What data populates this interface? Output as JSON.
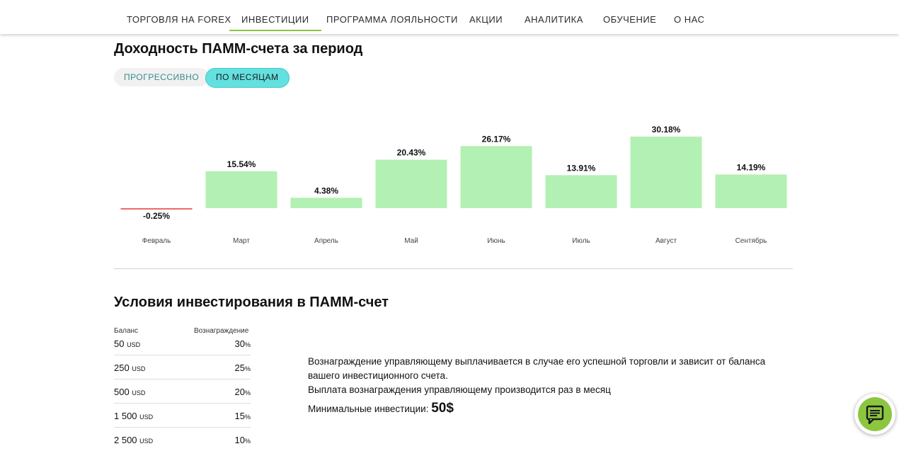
{
  "nav": {
    "items": [
      {
        "label": "ТОРГОВЛЯ НА FOREX"
      },
      {
        "label": "ИНВЕСТИЦИИ",
        "active": true
      },
      {
        "label": "ПРОГРАММА ЛОЯЛЬНОСТИ"
      },
      {
        "label": "АКЦИИ"
      },
      {
        "label": "АНАЛИТИКА"
      },
      {
        "label": "ОБУЧЕНИЕ"
      },
      {
        "label": "О НАС"
      }
    ],
    "accent_color": "#8cc63f"
  },
  "yield_section": {
    "title": "Доходность ПАММ-счета за период",
    "toggle_progressive": "ПРОГРЕССИВНО",
    "toggle_monthly": "ПО МЕСЯЦАМ",
    "selected": "ПО МЕСЯЦАМ"
  },
  "chart_data": {
    "type": "bar",
    "categories": [
      "Февраль",
      "Март",
      "Апрель",
      "Май",
      "Июнь",
      "Июль",
      "Август",
      "Сентябрь"
    ],
    "values": [
      -0.25,
      15.54,
      4.38,
      20.43,
      26.17,
      13.91,
      30.18,
      14.19
    ],
    "value_labels": [
      "-0.25%",
      "15.54%",
      "4.38%",
      "20.43%",
      "26.17%",
      "13.91%",
      "30.18%",
      "14.19%"
    ],
    "unit": "%",
    "colors": {
      "positive": "#b3f0b3",
      "negative": "#e53935"
    },
    "grid": false
  },
  "conditions_section": {
    "title": "Условия инвестирования в ПАММ-счет",
    "table": {
      "header_balance": "Баланс",
      "header_reward": "Вознаграждение",
      "rows": [
        {
          "amount": "50",
          "currency": "USD",
          "reward": "30",
          "unit": "%"
        },
        {
          "amount": "250",
          "currency": "USD",
          "reward": "25",
          "unit": "%"
        },
        {
          "amount": "500",
          "currency": "USD",
          "reward": "20",
          "unit": "%"
        },
        {
          "amount": "1 500",
          "currency": "USD",
          "reward": "15",
          "unit": "%"
        },
        {
          "amount": "2 500",
          "currency": "USD",
          "reward": "10",
          "unit": "%"
        }
      ]
    },
    "info_line1": "Вознаграждение управляющему выплачивается в случае его успешной торговли и зависит от баланса",
    "info_line2": "вашего инвестиционного счета.",
    "info_line3": "Выплата вознаграждения управляющему производится раз в месяц",
    "min_label": "Минимальные инвестиции:",
    "min_value": "50$"
  },
  "chat": {
    "icon": "chat-icon",
    "color": "#8cc63f"
  }
}
